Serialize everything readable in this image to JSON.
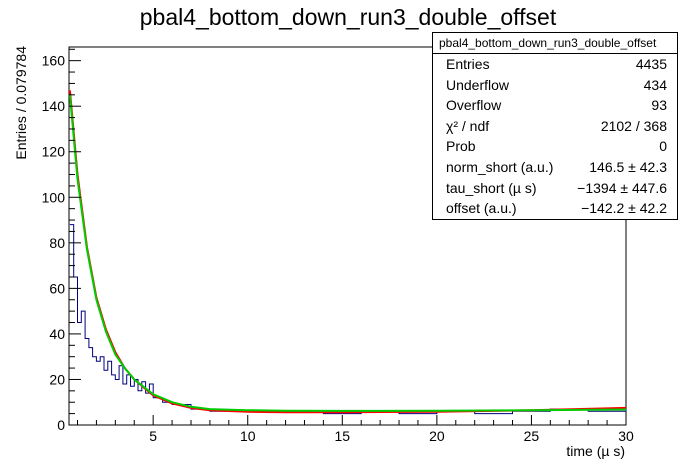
{
  "chart_data": {
    "type": "line",
    "title": "pbal4_bottom_down_run3_double_offset",
    "xlabel": "time (µ s)",
    "ylabel": "Entries / 0.079784",
    "xlim": [
      0.55,
      30
    ],
    "ylim": [
      0,
      166
    ],
    "xticks": [
      5,
      10,
      15,
      20,
      25,
      30
    ],
    "xtick_labels": [
      "5",
      "10",
      "15",
      "20",
      "25",
      "30"
    ],
    "yticks": [
      0,
      20,
      40,
      60,
      80,
      100,
      120,
      140,
      160
    ],
    "ytick_labels": [
      "0",
      "20",
      "40",
      "60",
      "80",
      "100",
      "120",
      "140",
      "160"
    ],
    "grid": false,
    "legend": "none",
    "series": [
      {
        "kind": "histogram",
        "color": "#00007f",
        "x": [
          0.6,
          0.8,
          1.0,
          1.2,
          1.4,
          1.6,
          1.8,
          2.0,
          2.2,
          2.4,
          2.6,
          2.8,
          3.0,
          3.2,
          3.4,
          3.6,
          3.8,
          4.0,
          4.2,
          4.4,
          4.6,
          4.8,
          5.0,
          5.5,
          6,
          7,
          8,
          10,
          12,
          14,
          16,
          18,
          20,
          22,
          24,
          26,
          28,
          30
        ],
        "values": [
          88,
          65,
          45,
          50,
          38,
          34,
          30,
          28,
          30,
          24,
          28,
          22,
          20,
          26,
          18,
          22,
          17,
          20,
          15,
          19,
          14,
          18,
          12,
          10,
          9,
          7,
          6,
          6,
          6,
          5,
          6,
          5,
          6,
          5,
          6,
          7,
          6,
          7
        ]
      },
      {
        "kind": "fit",
        "color": "#ff0000",
        "x": [
          0.6,
          1.0,
          1.5,
          2.0,
          2.5,
          3.0,
          3.5,
          4.0,
          5.0,
          6.0,
          7.0,
          8.0,
          10,
          12,
          15,
          20,
          25,
          30
        ],
        "values": [
          147,
          110,
          78,
          56,
          42,
          32,
          25,
          20,
          13,
          9.5,
          7.5,
          6.5,
          5.8,
          5.6,
          5.6,
          5.8,
          6.5,
          7.5
        ]
      },
      {
        "kind": "fit",
        "color": "#00cc00",
        "x": [
          0.6,
          1.0,
          1.5,
          2.0,
          2.5,
          3.0,
          3.5,
          4.0,
          5.0,
          6.0,
          7.0,
          8.0,
          10,
          12,
          15,
          20,
          25,
          30
        ],
        "values": [
          145,
          108,
          77,
          55,
          41,
          31,
          25,
          20,
          13.5,
          10,
          8,
          7,
          6.5,
          6.3,
          6.2,
          6.3,
          6.5,
          6.8
        ]
      }
    ]
  },
  "stats": {
    "title": "pbal4_bottom_down_run3_double_offset",
    "rows": [
      {
        "label": "Entries",
        "value": "4435"
      },
      {
        "label": "Underflow",
        "value": "434"
      },
      {
        "label": "Overflow",
        "value": "93"
      },
      {
        "label": "χ² / ndf",
        "value": "2102 / 368"
      },
      {
        "label": "Prob",
        "value": "0"
      },
      {
        "label": "norm_short (a.u.)",
        "value": "146.5 ± 42.3"
      },
      {
        "label": "tau_short (µ s)",
        "value": "−1394 ± 447.6"
      },
      {
        "label": "offset (a.u.)",
        "value": "−142.2 ± 42.2"
      }
    ]
  }
}
